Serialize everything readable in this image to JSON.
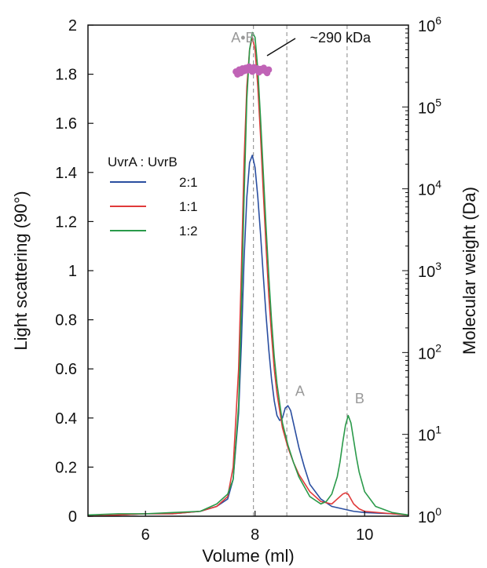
{
  "chart_data": {
    "type": "line",
    "xlabel": "Volume (ml)",
    "ylabel": "Light scattering (90°)",
    "y2label": "Molecular weight (Da)",
    "xlim": [
      4.95,
      10.8
    ],
    "ylim": [
      0,
      2
    ],
    "y2lim": [
      1,
      1000000
    ],
    "y2scale": "log",
    "xticks": [
      6,
      8,
      10
    ],
    "yticks": [
      0,
      0.2,
      0.4,
      0.6,
      0.8,
      1,
      1.2,
      1.4,
      1.6,
      1.8,
      2
    ],
    "y2ticks": [
      {
        "value": 1,
        "base": "10",
        "exp": "0"
      },
      {
        "value": 10,
        "base": "10",
        "exp": "1"
      },
      {
        "value": 100,
        "base": "10",
        "exp": "2"
      },
      {
        "value": 1000,
        "base": "10",
        "exp": "3"
      },
      {
        "value": 10000,
        "base": "10",
        "exp": "4"
      },
      {
        "value": 100000,
        "base": "10",
        "exp": "5"
      },
      {
        "value": 1000000,
        "base": "10",
        "exp": "6"
      }
    ],
    "legend": {
      "title": "UvrA : UvrB",
      "placement": "upper-left",
      "entries": [
        "2:1",
        "1:1",
        "1:2"
      ]
    },
    "series": [
      {
        "name": "2:1",
        "color": "#2a4ea0",
        "x": [
          4.95,
          5.5,
          6.0,
          6.5,
          7.0,
          7.3,
          7.5,
          7.6,
          7.7,
          7.75,
          7.8,
          7.85,
          7.9,
          7.95,
          8.0,
          8.05,
          8.1,
          8.15,
          8.2,
          8.25,
          8.3,
          8.35,
          8.4,
          8.45,
          8.5,
          8.55,
          8.6,
          8.65,
          8.7,
          8.8,
          8.9,
          9.0,
          9.2,
          9.4,
          9.6,
          9.8,
          10.0,
          10.5,
          10.8
        ],
        "y": [
          0.0,
          0.005,
          0.01,
          0.01,
          0.02,
          0.04,
          0.07,
          0.15,
          0.42,
          0.7,
          1.05,
          1.3,
          1.44,
          1.47,
          1.42,
          1.3,
          1.15,
          0.98,
          0.82,
          0.68,
          0.56,
          0.47,
          0.41,
          0.39,
          0.4,
          0.44,
          0.45,
          0.43,
          0.38,
          0.28,
          0.2,
          0.13,
          0.07,
          0.04,
          0.03,
          0.02,
          0.015,
          0.01,
          0.005
        ]
      },
      {
        "name": "1:1",
        "color": "#e03a3a",
        "x": [
          4.95,
          5.5,
          6.0,
          6.5,
          7.0,
          7.3,
          7.5,
          7.6,
          7.7,
          7.75,
          7.8,
          7.85,
          7.9,
          7.95,
          8.0,
          8.05,
          8.1,
          8.15,
          8.2,
          8.25,
          8.3,
          8.35,
          8.4,
          8.5,
          8.6,
          8.7,
          8.8,
          9.0,
          9.2,
          9.4,
          9.5,
          9.6,
          9.65,
          9.7,
          9.75,
          9.8,
          9.9,
          10.0,
          10.5,
          10.8
        ],
        "y": [
          0.0,
          0.005,
          0.01,
          0.01,
          0.02,
          0.04,
          0.08,
          0.2,
          0.6,
          1.0,
          1.45,
          1.75,
          1.9,
          1.95,
          1.9,
          1.75,
          1.55,
          1.32,
          1.1,
          0.9,
          0.74,
          0.6,
          0.5,
          0.36,
          0.28,
          0.22,
          0.17,
          0.1,
          0.06,
          0.05,
          0.07,
          0.09,
          0.095,
          0.09,
          0.07,
          0.05,
          0.03,
          0.02,
          0.01,
          0.005
        ]
      },
      {
        "name": "1:2",
        "color": "#2a9a4a",
        "x": [
          4.95,
          5.5,
          6.0,
          6.5,
          7.0,
          7.3,
          7.5,
          7.6,
          7.7,
          7.75,
          7.8,
          7.85,
          7.9,
          7.95,
          8.0,
          8.05,
          8.1,
          8.15,
          8.2,
          8.25,
          8.3,
          8.35,
          8.4,
          8.5,
          8.6,
          8.7,
          8.8,
          9.0,
          9.2,
          9.3,
          9.4,
          9.5,
          9.55,
          9.6,
          9.65,
          9.7,
          9.75,
          9.8,
          9.85,
          9.9,
          10.0,
          10.2,
          10.5,
          10.8
        ],
        "y": [
          0.005,
          0.01,
          0.01,
          0.015,
          0.02,
          0.05,
          0.09,
          0.15,
          0.45,
          0.85,
          1.3,
          1.7,
          1.9,
          1.97,
          1.95,
          1.82,
          1.62,
          1.4,
          1.18,
          0.98,
          0.8,
          0.65,
          0.54,
          0.38,
          0.29,
          0.22,
          0.16,
          0.08,
          0.05,
          0.06,
          0.09,
          0.16,
          0.22,
          0.3,
          0.37,
          0.41,
          0.38,
          0.31,
          0.24,
          0.18,
          0.1,
          0.04,
          0.015,
          0.005
        ]
      }
    ],
    "reference_lines_x": [
      7.97,
      8.58,
      9.68
    ],
    "mw_points": {
      "color": "#c063b6",
      "value": 290000,
      "x": [
        7.65,
        7.68,
        7.71,
        7.74,
        7.77,
        7.8,
        7.83,
        7.86,
        7.89,
        7.92,
        7.95,
        7.98,
        8.01,
        8.04,
        8.07,
        8.1,
        8.13,
        8.16,
        8.19,
        8.22,
        8.25
      ],
      "y": [
        270000,
        250000,
        285000,
        260000,
        295000,
        275000,
        300000,
        280000,
        310000,
        290000,
        270000,
        305000,
        285000,
        295000,
        265000,
        290000,
        280000,
        300000,
        275000,
        260000,
        285000
      ]
    },
    "annotations": [
      {
        "id": "ab",
        "text": "A•B",
        "x": 7.78,
        "y": 1.93,
        "color": "#999999"
      },
      {
        "id": "a",
        "text": "A",
        "x": 8.82,
        "y": 0.49,
        "color": "#999999"
      },
      {
        "id": "b",
        "text": "B",
        "x": 9.91,
        "y": 0.46,
        "color": "#999999"
      },
      {
        "id": "mw",
        "text": "~290 kDa",
        "x": 9.0,
        "y": 1.93,
        "color": "#111111"
      }
    ]
  }
}
